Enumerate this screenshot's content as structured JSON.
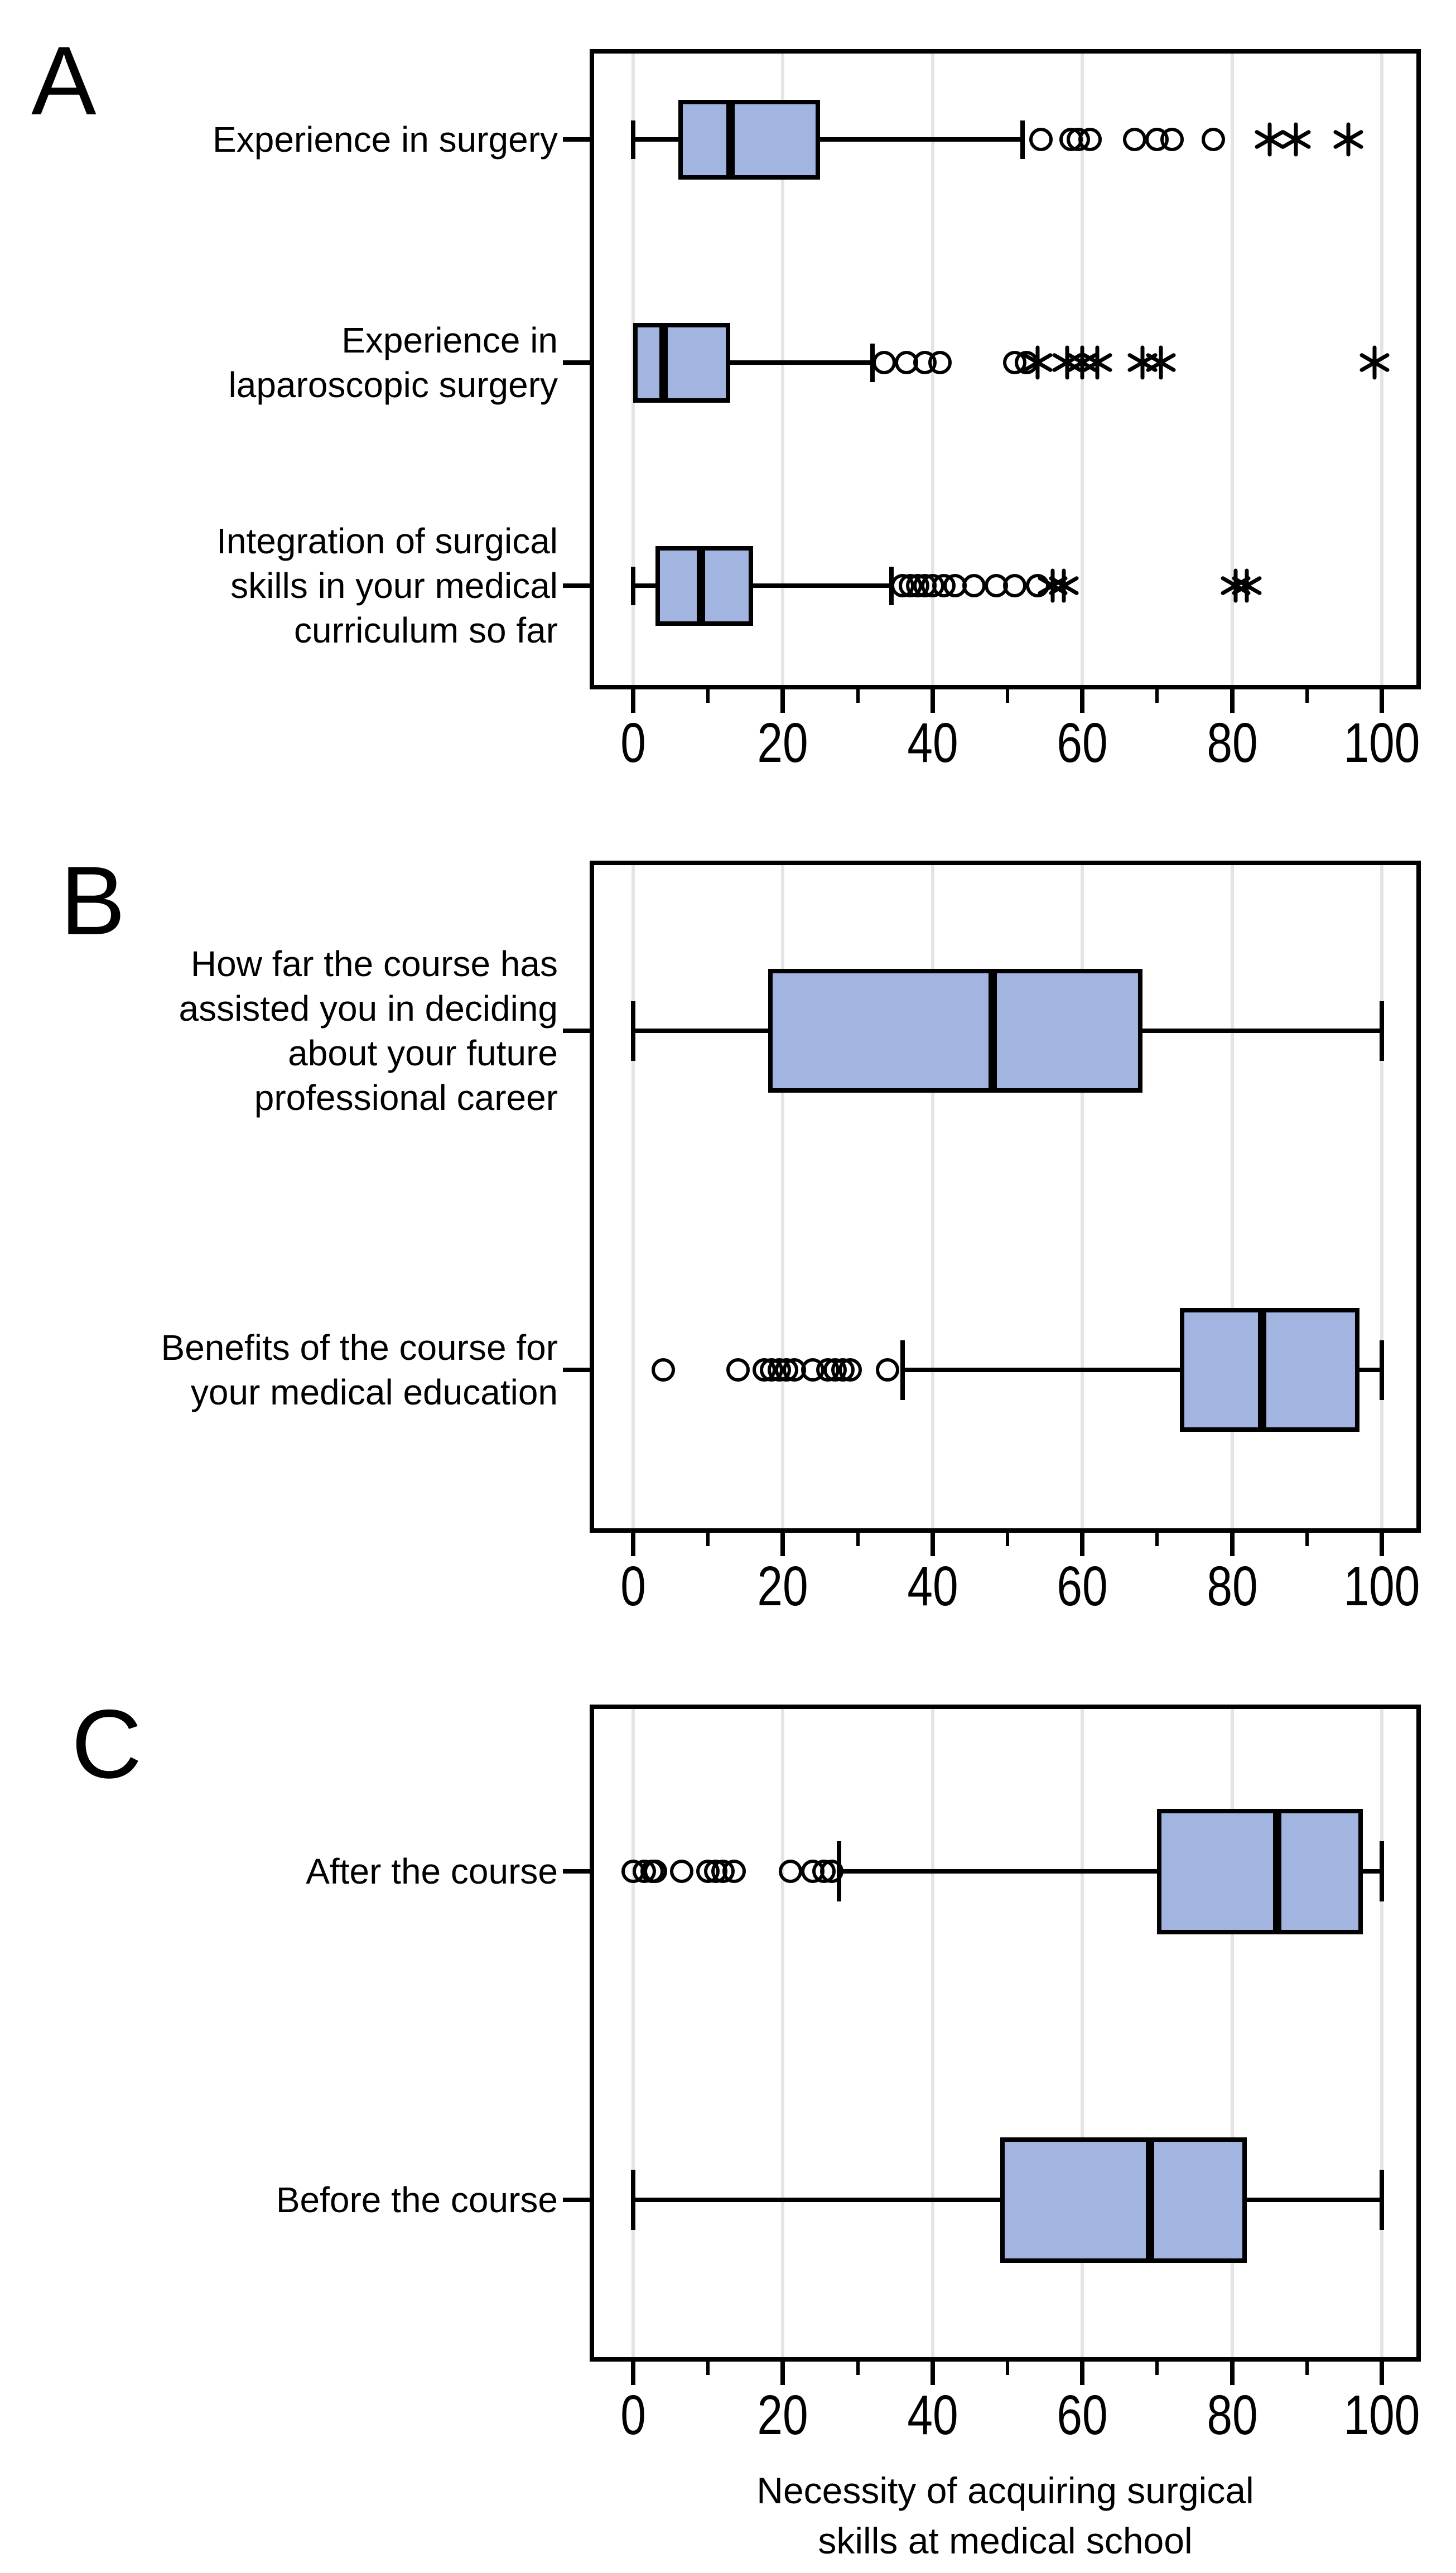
{
  "figure": {
    "panel_letters": [
      "A",
      "B",
      "C"
    ],
    "box_fill_color": "#a2b5e0",
    "line_color": "#000000",
    "gridline_color": "#e4e4e4",
    "background_color": "#ffffff"
  },
  "chart_data": [
    {
      "type": "boxplot",
      "panel": "A",
      "orientation": "horizontal",
      "xlim": [
        0,
        100
      ],
      "xticks": [
        0,
        20,
        40,
        60,
        80,
        100
      ],
      "minor_xticks": [
        10,
        30,
        50,
        70,
        90
      ],
      "grid": true,
      "xlabel": "",
      "xlabel_lines": [],
      "categories": [
        "Experience in surgery",
        "Experience in laparoscopic surgery",
        "Integration of surgical skills in your medical curriculum so far"
      ],
      "category_label_lines": [
        [
          "Experience in surgery"
        ],
        [
          "Experience in",
          "laparoscopic surgery"
        ],
        [
          "Integration of surgical",
          "skills in your medical",
          "curriculum so far"
        ]
      ],
      "series": [
        {
          "category": "Experience in surgery",
          "whisker_low": 0,
          "q1": 6,
          "median": 13,
          "q3": 25,
          "whisker_high": 52,
          "mild_outliers": [
            54.5,
            58.5,
            59.5,
            61,
            67,
            70,
            72,
            77.5
          ],
          "extreme_outliers": [
            85,
            88.5,
            95.5
          ]
        },
        {
          "category": "Experience in laparoscopic surgery",
          "whisker_low": 0,
          "q1": 0,
          "median": 4,
          "q3": 13,
          "whisker_high": 32,
          "mild_outliers": [
            33.5,
            36.5,
            39,
            41,
            51,
            52.5
          ],
          "extreme_outliers": [
            54,
            58,
            60,
            62,
            68,
            70.5,
            99
          ]
        },
        {
          "category": "Integration of surgical skills in your medical curriculum so far",
          "whisker_low": 0,
          "q1": 3,
          "median": 9,
          "q3": 16,
          "whisker_high": 34.5,
          "mild_outliers": [
            36,
            37,
            38,
            39,
            40,
            41.5,
            43,
            45.5,
            48.5,
            51,
            54
          ],
          "extreme_outliers": [
            56,
            57.5,
            80.5,
            82
          ]
        }
      ]
    },
    {
      "type": "boxplot",
      "panel": "B",
      "orientation": "horizontal",
      "xlim": [
        0,
        100
      ],
      "xticks": [
        0,
        20,
        40,
        60,
        80,
        100
      ],
      "minor_xticks": [
        10,
        30,
        50,
        70,
        90
      ],
      "grid": true,
      "xlabel": "",
      "xlabel_lines": [],
      "categories": [
        "How far the course has assisted you in deciding about your future professional career",
        "Benefits of the course for your medical education"
      ],
      "category_label_lines": [
        [
          "How far the course has",
          "assisted you in deciding",
          "about your future",
          "professional career"
        ],
        [
          "Benefits of the course for",
          "your medical education"
        ]
      ],
      "series": [
        {
          "category": "How far the course has assisted you in deciding about your future professional career",
          "whisker_low": 0,
          "q1": 18,
          "median": 48,
          "q3": 68,
          "whisker_high": 100,
          "mild_outliers": [],
          "extreme_outliers": []
        },
        {
          "category": "Benefits of the course for your medical education",
          "whisker_low": 36,
          "q1": 73,
          "median": 84,
          "q3": 97,
          "whisker_high": 100,
          "mild_outliers": [
            4,
            14,
            17.5,
            18.5,
            19.5,
            20.5,
            21.5,
            24,
            26,
            27,
            28,
            29,
            34
          ],
          "extreme_outliers": []
        }
      ]
    },
    {
      "type": "boxplot",
      "panel": "C",
      "orientation": "horizontal",
      "xlim": [
        0,
        100
      ],
      "xticks": [
        0,
        20,
        40,
        60,
        80,
        100
      ],
      "minor_xticks": [
        10,
        30,
        50,
        70,
        90
      ],
      "grid": true,
      "xlabel": "Necessity of acquiring surgical skills at medical school",
      "xlabel_lines": [
        "Necessity of acquiring surgical",
        "skills at medical school"
      ],
      "categories": [
        "After the course",
        "Before the course"
      ],
      "category_label_lines": [
        [
          "After the course"
        ],
        [
          "Before the course"
        ]
      ],
      "series": [
        {
          "category": "After the course",
          "whisker_low": 27.5,
          "q1": 70,
          "median": 86,
          "q3": 97.5,
          "whisker_high": 100,
          "mild_outliers": [
            0,
            1.5,
            2.5,
            3,
            6.5,
            10,
            11,
            12,
            13.5,
            21,
            24,
            25.5,
            26.5
          ],
          "extreme_outliers": []
        },
        {
          "category": "Before the course",
          "whisker_low": 0,
          "q1": 49,
          "median": 69,
          "q3": 82,
          "whisker_high": 100,
          "mild_outliers": [],
          "extreme_outliers": []
        }
      ]
    }
  ]
}
